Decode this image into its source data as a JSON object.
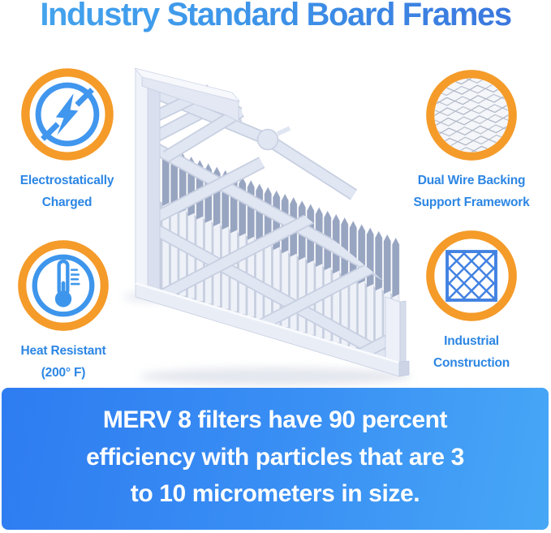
{
  "title": "Industry Standard Board Frames",
  "features": [
    {
      "id": "electrostatically-charged",
      "icon": "lightning-icon",
      "lines": [
        "Electrostatically",
        "Charged"
      ]
    },
    {
      "id": "dual-wire-backing",
      "icon": "wire-mesh-icon",
      "lines": [
        "Dual Wire Backing",
        "Support Framework"
      ]
    },
    {
      "id": "heat-resistant",
      "icon": "thermometer-icon",
      "lines": [
        "Heat Resistant",
        "(200° F)"
      ]
    },
    {
      "id": "industrial-construction",
      "icon": "lattice-grid-icon",
      "lines": [
        "Industrial",
        "Construction"
      ]
    }
  ],
  "banner": {
    "lines": [
      "MERV 8 filters have 90 percent",
      "efficiency with particles that are 3",
      "to 10 micrometers in size."
    ]
  },
  "illustration": {
    "description": "Pleated air filter with industry standard board frame"
  },
  "colors": {
    "accent_orange": "#F49B2A",
    "accent_blue": "#3E96EC",
    "label_blue": "#2C86E4",
    "title_blue_start": "#45A6EE",
    "title_blue_end": "#3A72DC",
    "banner_blue_start": "#2E7CF1",
    "banner_blue_end": "#47A7F6",
    "banner_text": "#FFFFFF"
  }
}
